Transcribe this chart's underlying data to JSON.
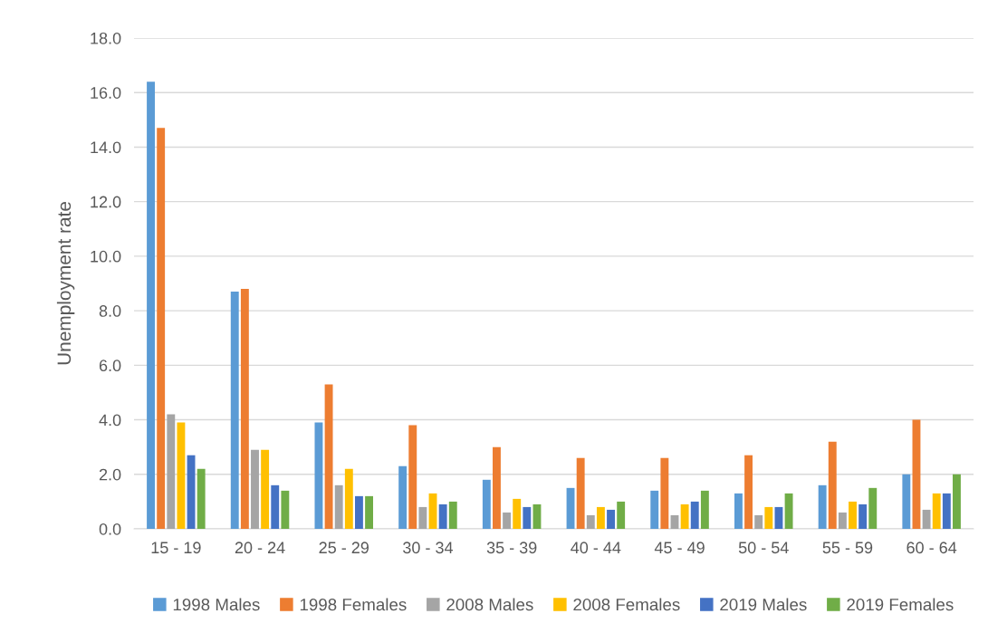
{
  "chart_data": {
    "type": "bar",
    "ylabel": "Unemployment rate",
    "categories": [
      "15 - 19",
      "20 - 24",
      "25 - 29",
      "30 - 34",
      "35 - 39",
      "40 - 44",
      "45 - 49",
      "50 - 54",
      "55 - 59",
      "60 - 64"
    ],
    "series": [
      {
        "name": "1998 Males",
        "color": "#5b9bd5",
        "values": [
          16.4,
          8.7,
          3.9,
          2.3,
          1.8,
          1.5,
          1.4,
          1.3,
          1.6,
          2.0
        ]
      },
      {
        "name": "1998 Females",
        "color": "#ed7d31",
        "values": [
          14.7,
          8.8,
          5.3,
          3.8,
          3.0,
          2.6,
          2.6,
          2.7,
          3.2,
          4.0
        ]
      },
      {
        "name": "2008 Males",
        "color": "#a5a5a5",
        "values": [
          4.2,
          2.9,
          1.6,
          0.8,
          0.6,
          0.5,
          0.5,
          0.5,
          0.6,
          0.7
        ]
      },
      {
        "name": "2008 Females",
        "color": "#ffc000",
        "values": [
          3.9,
          2.9,
          2.2,
          1.3,
          1.1,
          0.8,
          0.9,
          0.8,
          1.0,
          1.3
        ]
      },
      {
        "name": "2019 Males",
        "color": "#4472c4",
        "values": [
          2.7,
          1.6,
          1.2,
          0.9,
          0.8,
          0.7,
          1.0,
          0.8,
          0.9,
          1.3
        ]
      },
      {
        "name": "2019 Females",
        "color": "#70ad47",
        "values": [
          2.2,
          1.4,
          1.2,
          1.0,
          0.9,
          1.0,
          1.4,
          1.3,
          1.5,
          2.0
        ]
      }
    ],
    "ylim": [
      0,
      18
    ],
    "yticks": [
      {
        "value": 0,
        "label": "0.0"
      },
      {
        "value": 2,
        "label": "2.0"
      },
      {
        "value": 4,
        "label": "4.0"
      },
      {
        "value": 6,
        "label": "6.0"
      },
      {
        "value": 8,
        "label": "8.0"
      },
      {
        "value": 10,
        "label": "10.0"
      },
      {
        "value": 12,
        "label": "12.0"
      },
      {
        "value": 14,
        "label": "14.0"
      },
      {
        "value": 16,
        "label": "16.0"
      },
      {
        "value": 18,
        "label": "18.0"
      }
    ],
    "grid": "y",
    "legend": "bottom"
  }
}
